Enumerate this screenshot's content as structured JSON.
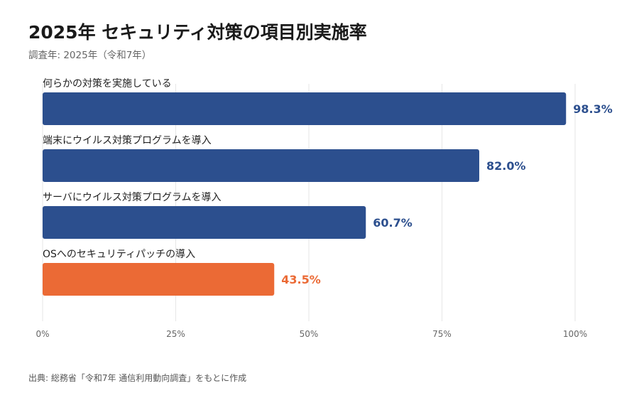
{
  "header": {
    "title": "2025年 セキュリティ対策の項目別実施率",
    "subtitle": "調査年: 2025年（令和7年）"
  },
  "footer": {
    "source": "出典: 総務省「令和7年 通信利用動向調査」をもとに作成"
  },
  "colors": {
    "primary": "#2c4f8e",
    "highlight": "#eb6a35",
    "grid": "#e6e6e6",
    "tick_text": "#666666",
    "label_text": "#222222"
  },
  "chart_data": {
    "type": "bar",
    "orientation": "horizontal",
    "categories": [
      "何らかの対策を実施している",
      "端末にウイルス対策プログラムを導入",
      "サーバにウイルス対策プログラムを導入",
      "OSへのセキュリティパッチの導入"
    ],
    "values": [
      98.3,
      82.0,
      60.7,
      43.5
    ],
    "value_labels": [
      "98.3%",
      "82.0%",
      "60.7%",
      "43.5%"
    ],
    "highlight_index": 3,
    "xlim": [
      0,
      100
    ],
    "xticks": [
      0,
      25,
      50,
      75,
      100
    ],
    "xtick_labels": [
      "0%",
      "25%",
      "50%",
      "75%",
      "100%"
    ],
    "grid": true,
    "legend": "none"
  }
}
